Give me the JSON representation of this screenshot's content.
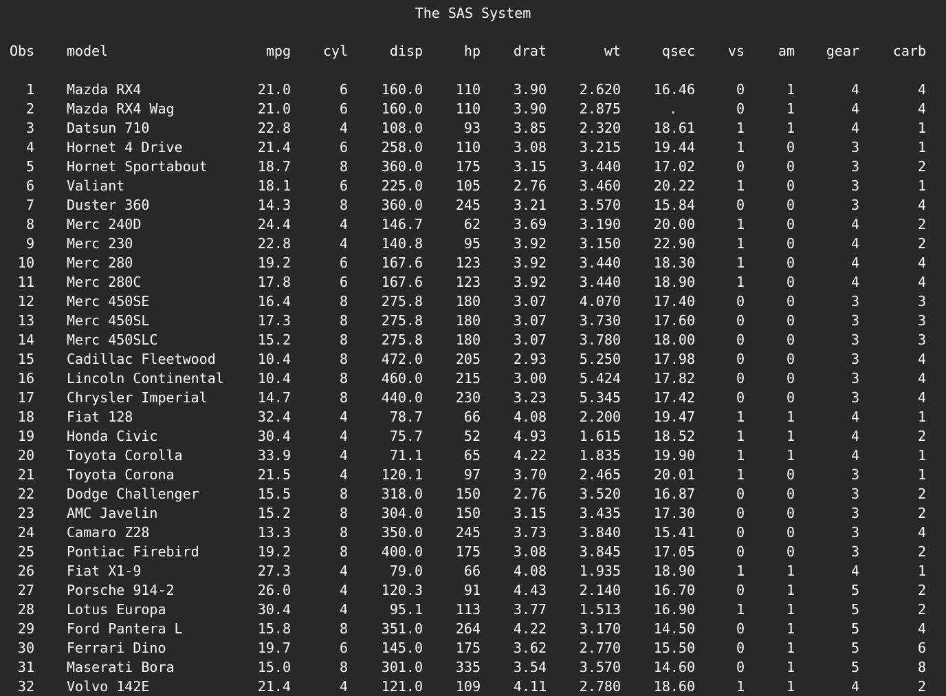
{
  "title": "The SAS System",
  "columns": [
    "Obs",
    "model",
    "mpg",
    "cyl",
    "disp",
    "hp",
    "drat",
    "wt",
    "qsec",
    "vs",
    "am",
    "gear",
    "carb"
  ],
  "rows": [
    [
      "1",
      "Mazda RX4",
      "21.0",
      "6",
      "160.0",
      "110",
      "3.90",
      "2.620",
      "16.46",
      "0",
      "1",
      "4",
      "4"
    ],
    [
      "2",
      "Mazda RX4 Wag",
      "21.0",
      "6",
      "160.0",
      "110",
      "3.90",
      "2.875",
      ".",
      "0",
      "1",
      "4",
      "4"
    ],
    [
      "3",
      "Datsun 710",
      "22.8",
      "4",
      "108.0",
      "93",
      "3.85",
      "2.320",
      "18.61",
      "1",
      "1",
      "4",
      "1"
    ],
    [
      "4",
      "Hornet 4 Drive",
      "21.4",
      "6",
      "258.0",
      "110",
      "3.08",
      "3.215",
      "19.44",
      "1",
      "0",
      "3",
      "1"
    ],
    [
      "5",
      "Hornet Sportabout",
      "18.7",
      "8",
      "360.0",
      "175",
      "3.15",
      "3.440",
      "17.02",
      "0",
      "0",
      "3",
      "2"
    ],
    [
      "6",
      "Valiant",
      "18.1",
      "6",
      "225.0",
      "105",
      "2.76",
      "3.460",
      "20.22",
      "1",
      "0",
      "3",
      "1"
    ],
    [
      "7",
      "Duster 360",
      "14.3",
      "8",
      "360.0",
      "245",
      "3.21",
      "3.570",
      "15.84",
      "0",
      "0",
      "3",
      "4"
    ],
    [
      "8",
      "Merc 240D",
      "24.4",
      "4",
      "146.7",
      "62",
      "3.69",
      "3.190",
      "20.00",
      "1",
      "0",
      "4",
      "2"
    ],
    [
      "9",
      "Merc 230",
      "22.8",
      "4",
      "140.8",
      "95",
      "3.92",
      "3.150",
      "22.90",
      "1",
      "0",
      "4",
      "2"
    ],
    [
      "10",
      "Merc 280",
      "19.2",
      "6",
      "167.6",
      "123",
      "3.92",
      "3.440",
      "18.30",
      "1",
      "0",
      "4",
      "4"
    ],
    [
      "11",
      "Merc 280C",
      "17.8",
      "6",
      "167.6",
      "123",
      "3.92",
      "3.440",
      "18.90",
      "1",
      "0",
      "4",
      "4"
    ],
    [
      "12",
      "Merc 450SE",
      "16.4",
      "8",
      "275.8",
      "180",
      "3.07",
      "4.070",
      "17.40",
      "0",
      "0",
      "3",
      "3"
    ],
    [
      "13",
      "Merc 450SL",
      "17.3",
      "8",
      "275.8",
      "180",
      "3.07",
      "3.730",
      "17.60",
      "0",
      "0",
      "3",
      "3"
    ],
    [
      "14",
      "Merc 450SLC",
      "15.2",
      "8",
      "275.8",
      "180",
      "3.07",
      "3.780",
      "18.00",
      "0",
      "0",
      "3",
      "3"
    ],
    [
      "15",
      "Cadillac Fleetwood",
      "10.4",
      "8",
      "472.0",
      "205",
      "2.93",
      "5.250",
      "17.98",
      "0",
      "0",
      "3",
      "4"
    ],
    [
      "16",
      "Lincoln Continental",
      "10.4",
      "8",
      "460.0",
      "215",
      "3.00",
      "5.424",
      "17.82",
      "0",
      "0",
      "3",
      "4"
    ],
    [
      "17",
      "Chrysler Imperial",
      "14.7",
      "8",
      "440.0",
      "230",
      "3.23",
      "5.345",
      "17.42",
      "0",
      "0",
      "3",
      "4"
    ],
    [
      "18",
      "Fiat 128",
      "32.4",
      "4",
      "78.7",
      "66",
      "4.08",
      "2.200",
      "19.47",
      "1",
      "1",
      "4",
      "1"
    ],
    [
      "19",
      "Honda Civic",
      "30.4",
      "4",
      "75.7",
      "52",
      "4.93",
      "1.615",
      "18.52",
      "1",
      "1",
      "4",
      "2"
    ],
    [
      "20",
      "Toyota Corolla",
      "33.9",
      "4",
      "71.1",
      "65",
      "4.22",
      "1.835",
      "19.90",
      "1",
      "1",
      "4",
      "1"
    ],
    [
      "21",
      "Toyota Corona",
      "21.5",
      "4",
      "120.1",
      "97",
      "3.70",
      "2.465",
      "20.01",
      "1",
      "0",
      "3",
      "1"
    ],
    [
      "22",
      "Dodge Challenger",
      "15.5",
      "8",
      "318.0",
      "150",
      "2.76",
      "3.520",
      "16.87",
      "0",
      "0",
      "3",
      "2"
    ],
    [
      "23",
      "AMC Javelin",
      "15.2",
      "8",
      "304.0",
      "150",
      "3.15",
      "3.435",
      "17.30",
      "0",
      "0",
      "3",
      "2"
    ],
    [
      "24",
      "Camaro Z28",
      "13.3",
      "8",
      "350.0",
      "245",
      "3.73",
      "3.840",
      "15.41",
      "0",
      "0",
      "3",
      "4"
    ],
    [
      "25",
      "Pontiac Firebird",
      "19.2",
      "8",
      "400.0",
      "175",
      "3.08",
      "3.845",
      "17.05",
      "0",
      "0",
      "3",
      "2"
    ],
    [
      "26",
      "Fiat X1-9",
      "27.3",
      "4",
      "79.0",
      "66",
      "4.08",
      "1.935",
      "18.90",
      "1",
      "1",
      "4",
      "1"
    ],
    [
      "27",
      "Porsche 914-2",
      "26.0",
      "4",
      "120.3",
      "91",
      "4.43",
      "2.140",
      "16.70",
      "0",
      "1",
      "5",
      "2"
    ],
    [
      "28",
      "Lotus Europa",
      "30.4",
      "4",
      "95.1",
      "113",
      "3.77",
      "1.513",
      "16.90",
      "1",
      "1",
      "5",
      "2"
    ],
    [
      "29",
      "Ford Pantera L",
      "15.8",
      "8",
      "351.0",
      "264",
      "4.22",
      "3.170",
      "14.50",
      "0",
      "1",
      "5",
      "4"
    ],
    [
      "30",
      "Ferrari Dino",
      "19.7",
      "6",
      "145.0",
      "175",
      "3.62",
      "2.770",
      "15.50",
      "0",
      "1",
      "5",
      "6"
    ],
    [
      "31",
      "Maserati Bora",
      "15.0",
      "8",
      "301.0",
      "335",
      "3.54",
      "3.570",
      "14.60",
      "0",
      "1",
      "5",
      "8"
    ],
    [
      "32",
      "Volvo 142E",
      "21.4",
      "4",
      "121.0",
      "109",
      "4.11",
      "2.780",
      "18.60",
      "1",
      "1",
      "4",
      "2"
    ]
  ]
}
